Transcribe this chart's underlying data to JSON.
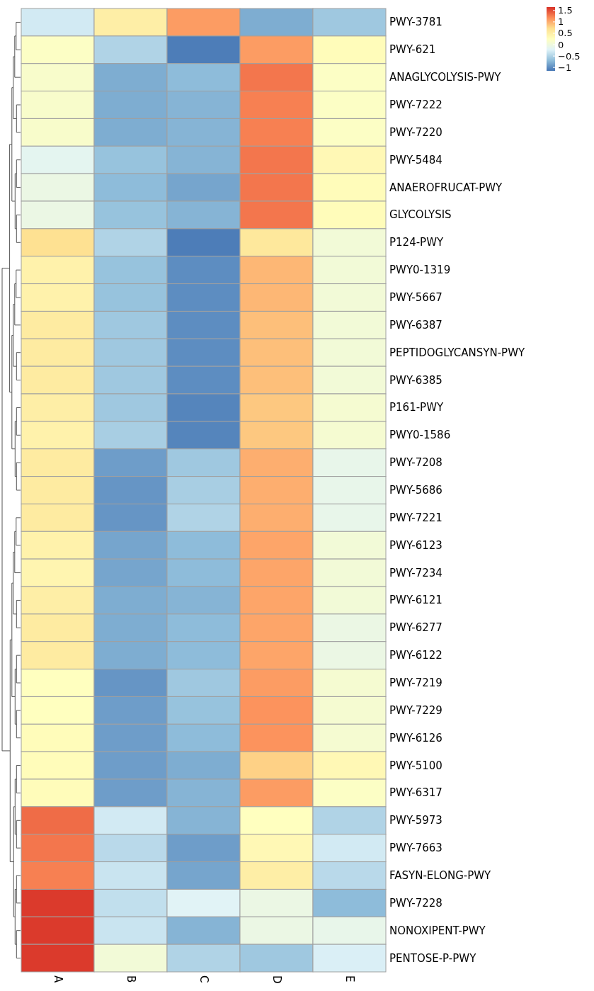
{
  "chart_data": {
    "type": "heatmap",
    "categories": [
      "A",
      "B",
      "C",
      "D",
      "E"
    ],
    "y_categories": [
      "PWY-3781",
      "PWY-621",
      "ANAGLYCOLYSIS-PWY",
      "PWY-7222",
      "PWY-7220",
      "PWY-5484",
      "ANAEROFRUCAT-PWY",
      "GLYCOLYSIS",
      "P124-PWY",
      "PWY0-1319",
      "PWY-5667",
      "PWY-6387",
      "PEPTIDOGLYCANSYN-PWY",
      "PWY-6385",
      "P161-PWY",
      "PWY0-1586",
      "PWY-7208",
      "PWY-5686",
      "PWY-7221",
      "PWY-6123",
      "PWY-7234",
      "PWY-6121",
      "PWY-6277",
      "PWY-6122",
      "PWY-7219",
      "PWY-7229",
      "PWY-6126",
      "PWY-5100",
      "PWY-6317",
      "PWY-5973",
      "PWY-7663",
      "FASYN-ELONG-PWY",
      "PWY-7228",
      "NONOXIPENT-PWY",
      "PENTOSE-P-PWY"
    ],
    "cells": [
      [
        -0.3,
        0.5,
        1.1,
        -0.8,
        -0.6
      ],
      [
        0.2,
        -0.5,
        -1.1,
        1.1,
        0.3
      ],
      [
        0.15,
        -0.8,
        -0.7,
        1.3,
        0.2
      ],
      [
        0.15,
        -0.8,
        -0.75,
        1.25,
        0.2
      ],
      [
        0.15,
        -0.8,
        -0.75,
        1.25,
        0.2
      ],
      [
        -0.15,
        -0.65,
        -0.75,
        1.3,
        0.35
      ],
      [
        -0.05,
        -0.7,
        -0.85,
        1.3,
        0.3
      ],
      [
        -0.05,
        -0.65,
        -0.75,
        1.3,
        0.3
      ],
      [
        0.7,
        -0.5,
        -1.1,
        0.6,
        0.05
      ],
      [
        0.45,
        -0.65,
        -1.0,
        0.95,
        0.05
      ],
      [
        0.45,
        -0.65,
        -1.0,
        0.95,
        0.05
      ],
      [
        0.55,
        -0.6,
        -1.0,
        0.9,
        0.05
      ],
      [
        0.55,
        -0.6,
        -1.0,
        0.9,
        0.05
      ],
      [
        0.55,
        -0.6,
        -1.0,
        0.9,
        0.05
      ],
      [
        0.5,
        -0.6,
        -1.05,
        0.85,
        0.1
      ],
      [
        0.45,
        -0.55,
        -1.05,
        0.85,
        0.1
      ],
      [
        0.55,
        -0.9,
        -0.6,
        1.0,
        -0.1
      ],
      [
        0.55,
        -0.95,
        -0.55,
        1.0,
        -0.1
      ],
      [
        0.55,
        -0.95,
        -0.5,
        1.0,
        -0.1
      ],
      [
        0.45,
        -0.85,
        -0.7,
        1.05,
        0.05
      ],
      [
        0.4,
        -0.85,
        -0.7,
        1.05,
        0.05
      ],
      [
        0.5,
        -0.8,
        -0.75,
        1.05,
        0.05
      ],
      [
        0.55,
        -0.8,
        -0.7,
        1.05,
        -0.05
      ],
      [
        0.55,
        -0.8,
        -0.7,
        1.05,
        -0.05
      ],
      [
        0.25,
        -0.95,
        -0.6,
        1.1,
        0.1
      ],
      [
        0.25,
        -0.9,
        -0.65,
        1.15,
        0.1
      ],
      [
        0.3,
        -0.9,
        -0.7,
        1.15,
        0.1
      ],
      [
        0.3,
        -0.9,
        -0.8,
        0.8,
        0.35
      ],
      [
        0.3,
        -0.9,
        -0.75,
        1.1,
        0.2
      ],
      [
        1.35,
        -0.3,
        -0.75,
        0.25,
        -0.5
      ],
      [
        1.3,
        -0.45,
        -0.9,
        0.35,
        -0.3
      ],
      [
        1.25,
        -0.35,
        -0.85,
        0.5,
        -0.45
      ],
      [
        1.6,
        -0.4,
        -0.2,
        -0.05,
        -0.7
      ],
      [
        1.6,
        -0.35,
        -0.75,
        -0.05,
        -0.1
      ],
      [
        1.6,
        0.05,
        -0.5,
        -0.6,
        -0.25
      ]
    ],
    "clim": [
      -1.15,
      1.65
    ],
    "cticks": [
      {
        "value": -1,
        "label": "−1"
      },
      {
        "value": -0.5,
        "label": "−0.5"
      },
      0,
      0.5,
      1,
      1.5
    ]
  }
}
